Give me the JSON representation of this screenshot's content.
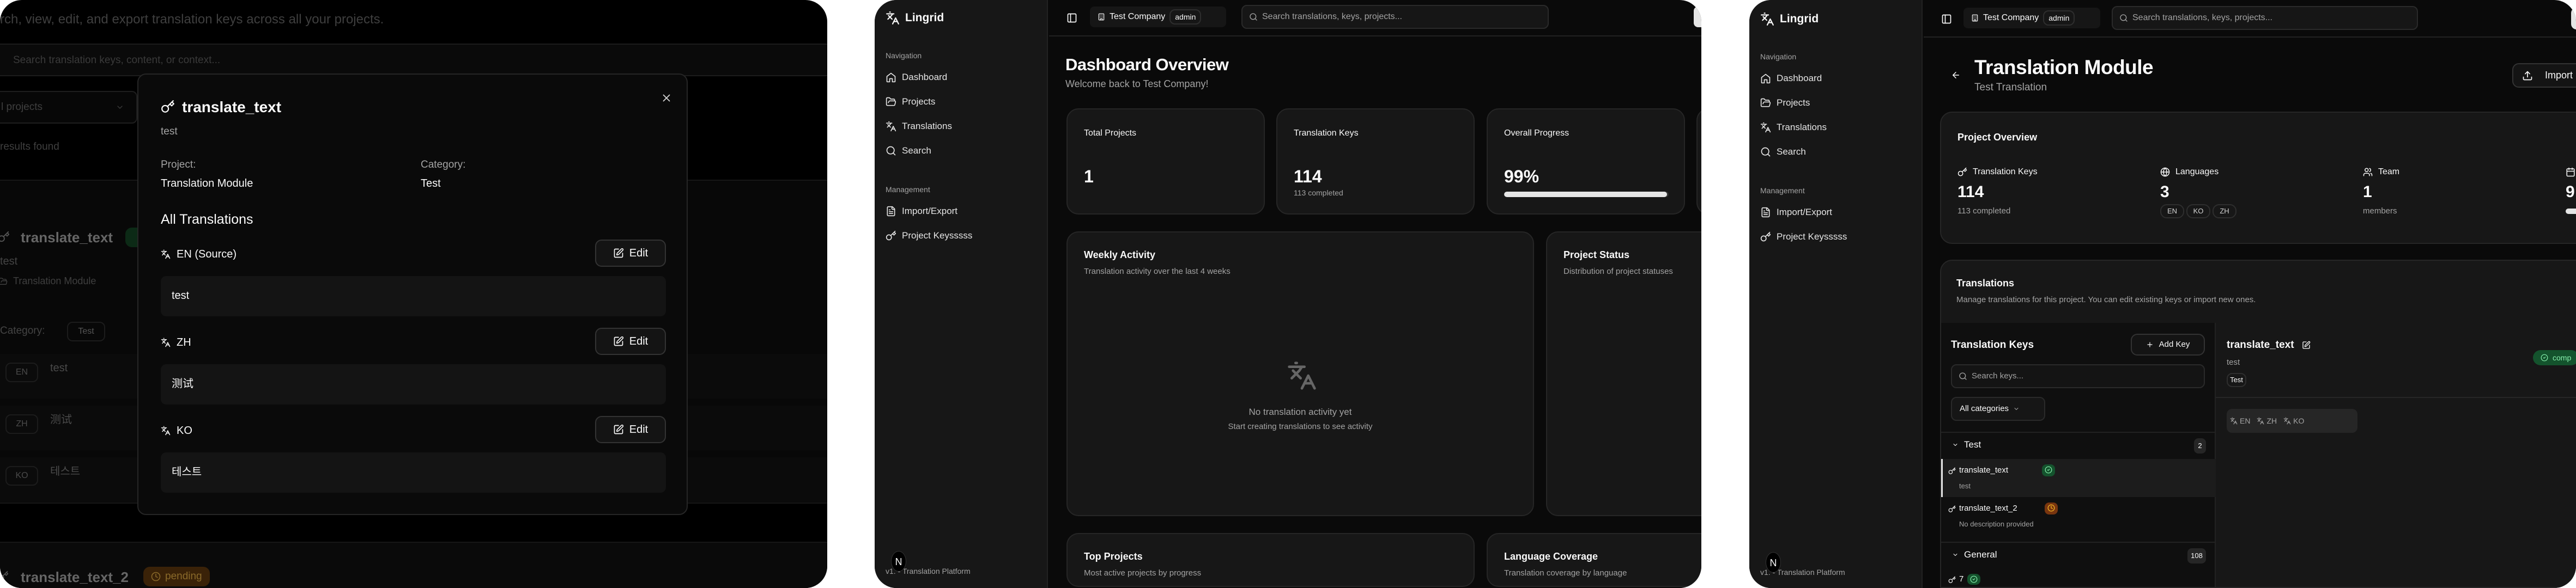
{
  "colors": {
    "background": "#0a0a0a",
    "card": "#171717",
    "border": "#262626",
    "success": "#14532d",
    "success_text": "#86efac",
    "warning": "#78350f",
    "warning_text": "#fbbf24"
  },
  "search_page": {
    "subtitle": "rch, view, edit, and export translation keys across all your projects.",
    "search_placeholder": "Search translation keys, content, or context...",
    "project_filter": "l projects",
    "results": "results found",
    "card1": {
      "key": "translate_text",
      "description": "test",
      "project": "Translation Module",
      "category_label": "Category:",
      "category": "Test",
      "rows": [
        {
          "lang": "EN",
          "text": "test"
        },
        {
          "lang": "ZH",
          "text": "测试"
        },
        {
          "lang": "KO",
          "text": "테스트"
        }
      ]
    },
    "card2": {
      "key": "translate_text_2",
      "status": "pending"
    }
  },
  "modal": {
    "title": "translate_text",
    "description": "test",
    "project_label": "Project:",
    "project_value": "Translation Module",
    "category_label": "Category:",
    "category_value": "Test",
    "section_title": "All Translations",
    "edit_label": "Edit",
    "translations": [
      {
        "lang": "EN (Source)",
        "text": "test"
      },
      {
        "lang": "ZH",
        "text": "测试"
      },
      {
        "lang": "KO",
        "text": "테스트"
      }
    ]
  },
  "app": {
    "brand": "Lingrid",
    "nav_section": "Navigation",
    "nav": [
      {
        "label": "Dashboard",
        "icon": "home-icon"
      },
      {
        "label": "Projects",
        "icon": "folder-icon"
      },
      {
        "label": "Translations",
        "icon": "languages-icon"
      },
      {
        "label": "Search",
        "icon": "search-icon"
      }
    ],
    "mgmt_section": "Management",
    "mgmt": [
      {
        "label": "Import/Export",
        "icon": "file-icon"
      },
      {
        "label": "Project Keysssss",
        "icon": "key-icon"
      }
    ],
    "footer": "v1. - Translation Platform",
    "avatar": "N",
    "company": "Test Company",
    "role": "admin",
    "search_placeholder": "Search translations, keys, projects..."
  },
  "dashboard": {
    "title": "Dashboard Overview",
    "subtitle": "Welcome back to Test Company!",
    "stats": [
      {
        "label": "Total Projects",
        "value": "1",
        "sub": ""
      },
      {
        "label": "Translation Keys",
        "value": "114",
        "sub": "113 completed"
      },
      {
        "label": "Overall Progress",
        "value": "99%",
        "progress": 99
      }
    ],
    "weekly": {
      "title": "Weekly Activity",
      "subtitle": "Translation activity over the last 4 weeks",
      "empty_title": "No translation activity yet",
      "empty_sub": "Start creating translations to see activity"
    },
    "status": {
      "title": "Project Status",
      "subtitle": "Distribution of project statuses"
    },
    "top": {
      "title": "Top Projects",
      "subtitle": "Most active projects by progress"
    },
    "coverage": {
      "title": "Language Coverage",
      "subtitle": "Translation coverage by language"
    }
  },
  "project": {
    "title": "Translation Module",
    "subtitle": "Test Translation",
    "import_label": "Import",
    "overview_title": "Project Overview",
    "stats": [
      {
        "label": "Translation Keys",
        "value": "114",
        "sub": "113 completed"
      },
      {
        "label": "Languages",
        "value": "3",
        "langs": [
          "EN",
          "KO",
          "ZH"
        ]
      },
      {
        "label": "Team",
        "value": "1",
        "sub": "members"
      },
      {
        "value": "9",
        "progress": 99
      }
    ],
    "translations_title": "Translations",
    "translations_desc": "Manage translations for this project. You can edit existing keys or import new ones.",
    "keys_title": "Translation Keys",
    "add_key": "Add Key",
    "search_keys": "Search keys...",
    "category_filter": "All categories",
    "groups": [
      {
        "name": "Test",
        "count": "2",
        "items": [
          {
            "key": "translate_text",
            "desc": "test",
            "status": "completed"
          },
          {
            "key": "translate_text_2",
            "desc": "No description provided",
            "status": "pending"
          }
        ]
      },
      {
        "name": "General",
        "count": "108",
        "items": [
          {
            "key": "7",
            "status": "completed"
          }
        ]
      }
    ],
    "detail": {
      "key": "translate_text",
      "desc": "test",
      "category": "Test",
      "status": "comp",
      "tabs": [
        "EN",
        "ZH",
        "KO"
      ]
    }
  }
}
